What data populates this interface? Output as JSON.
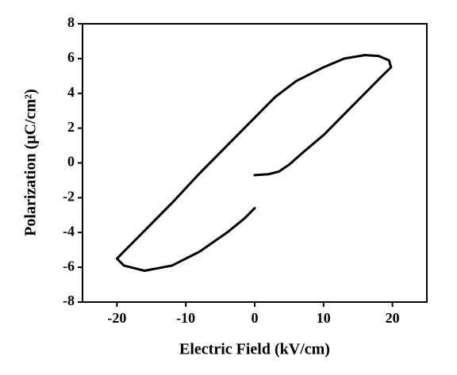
{
  "chart_data": {
    "type": "line",
    "xlabel": "Electric Field (kV/cm)",
    "ylabel": "Polarization (μC/cm²)",
    "xlim": [
      -25,
      25
    ],
    "xticks": [
      -20,
      -10,
      0,
      10,
      20
    ],
    "ylim": [
      -8,
      8
    ],
    "yticks": [
      -8,
      -6,
      -4,
      -2,
      0,
      2,
      4,
      6,
      8
    ],
    "series": [
      {
        "color": "#000000",
        "x": [
          0,
          2,
          3.5,
          5,
          7,
          10,
          13,
          16,
          18.5,
          19.8,
          19.5,
          18,
          16,
          13,
          10,
          6,
          3,
          0,
          -4,
          -8,
          -12,
          -16,
          -19,
          -20,
          -19,
          -16,
          -12,
          -8,
          -4,
          -1.5,
          0
        ],
        "values": [
          -0.7,
          -0.65,
          -0.5,
          -0.1,
          0.6,
          1.6,
          2.8,
          4,
          5,
          5.5,
          5.9,
          6.15,
          6.2,
          6,
          5.5,
          4.7,
          3.8,
          2.6,
          1,
          -0.6,
          -2.3,
          -3.9,
          -5.1,
          -5.5,
          -5.9,
          -6.2,
          -5.9,
          -5.1,
          -4,
          -3.2,
          -2.6
        ]
      }
    ]
  }
}
